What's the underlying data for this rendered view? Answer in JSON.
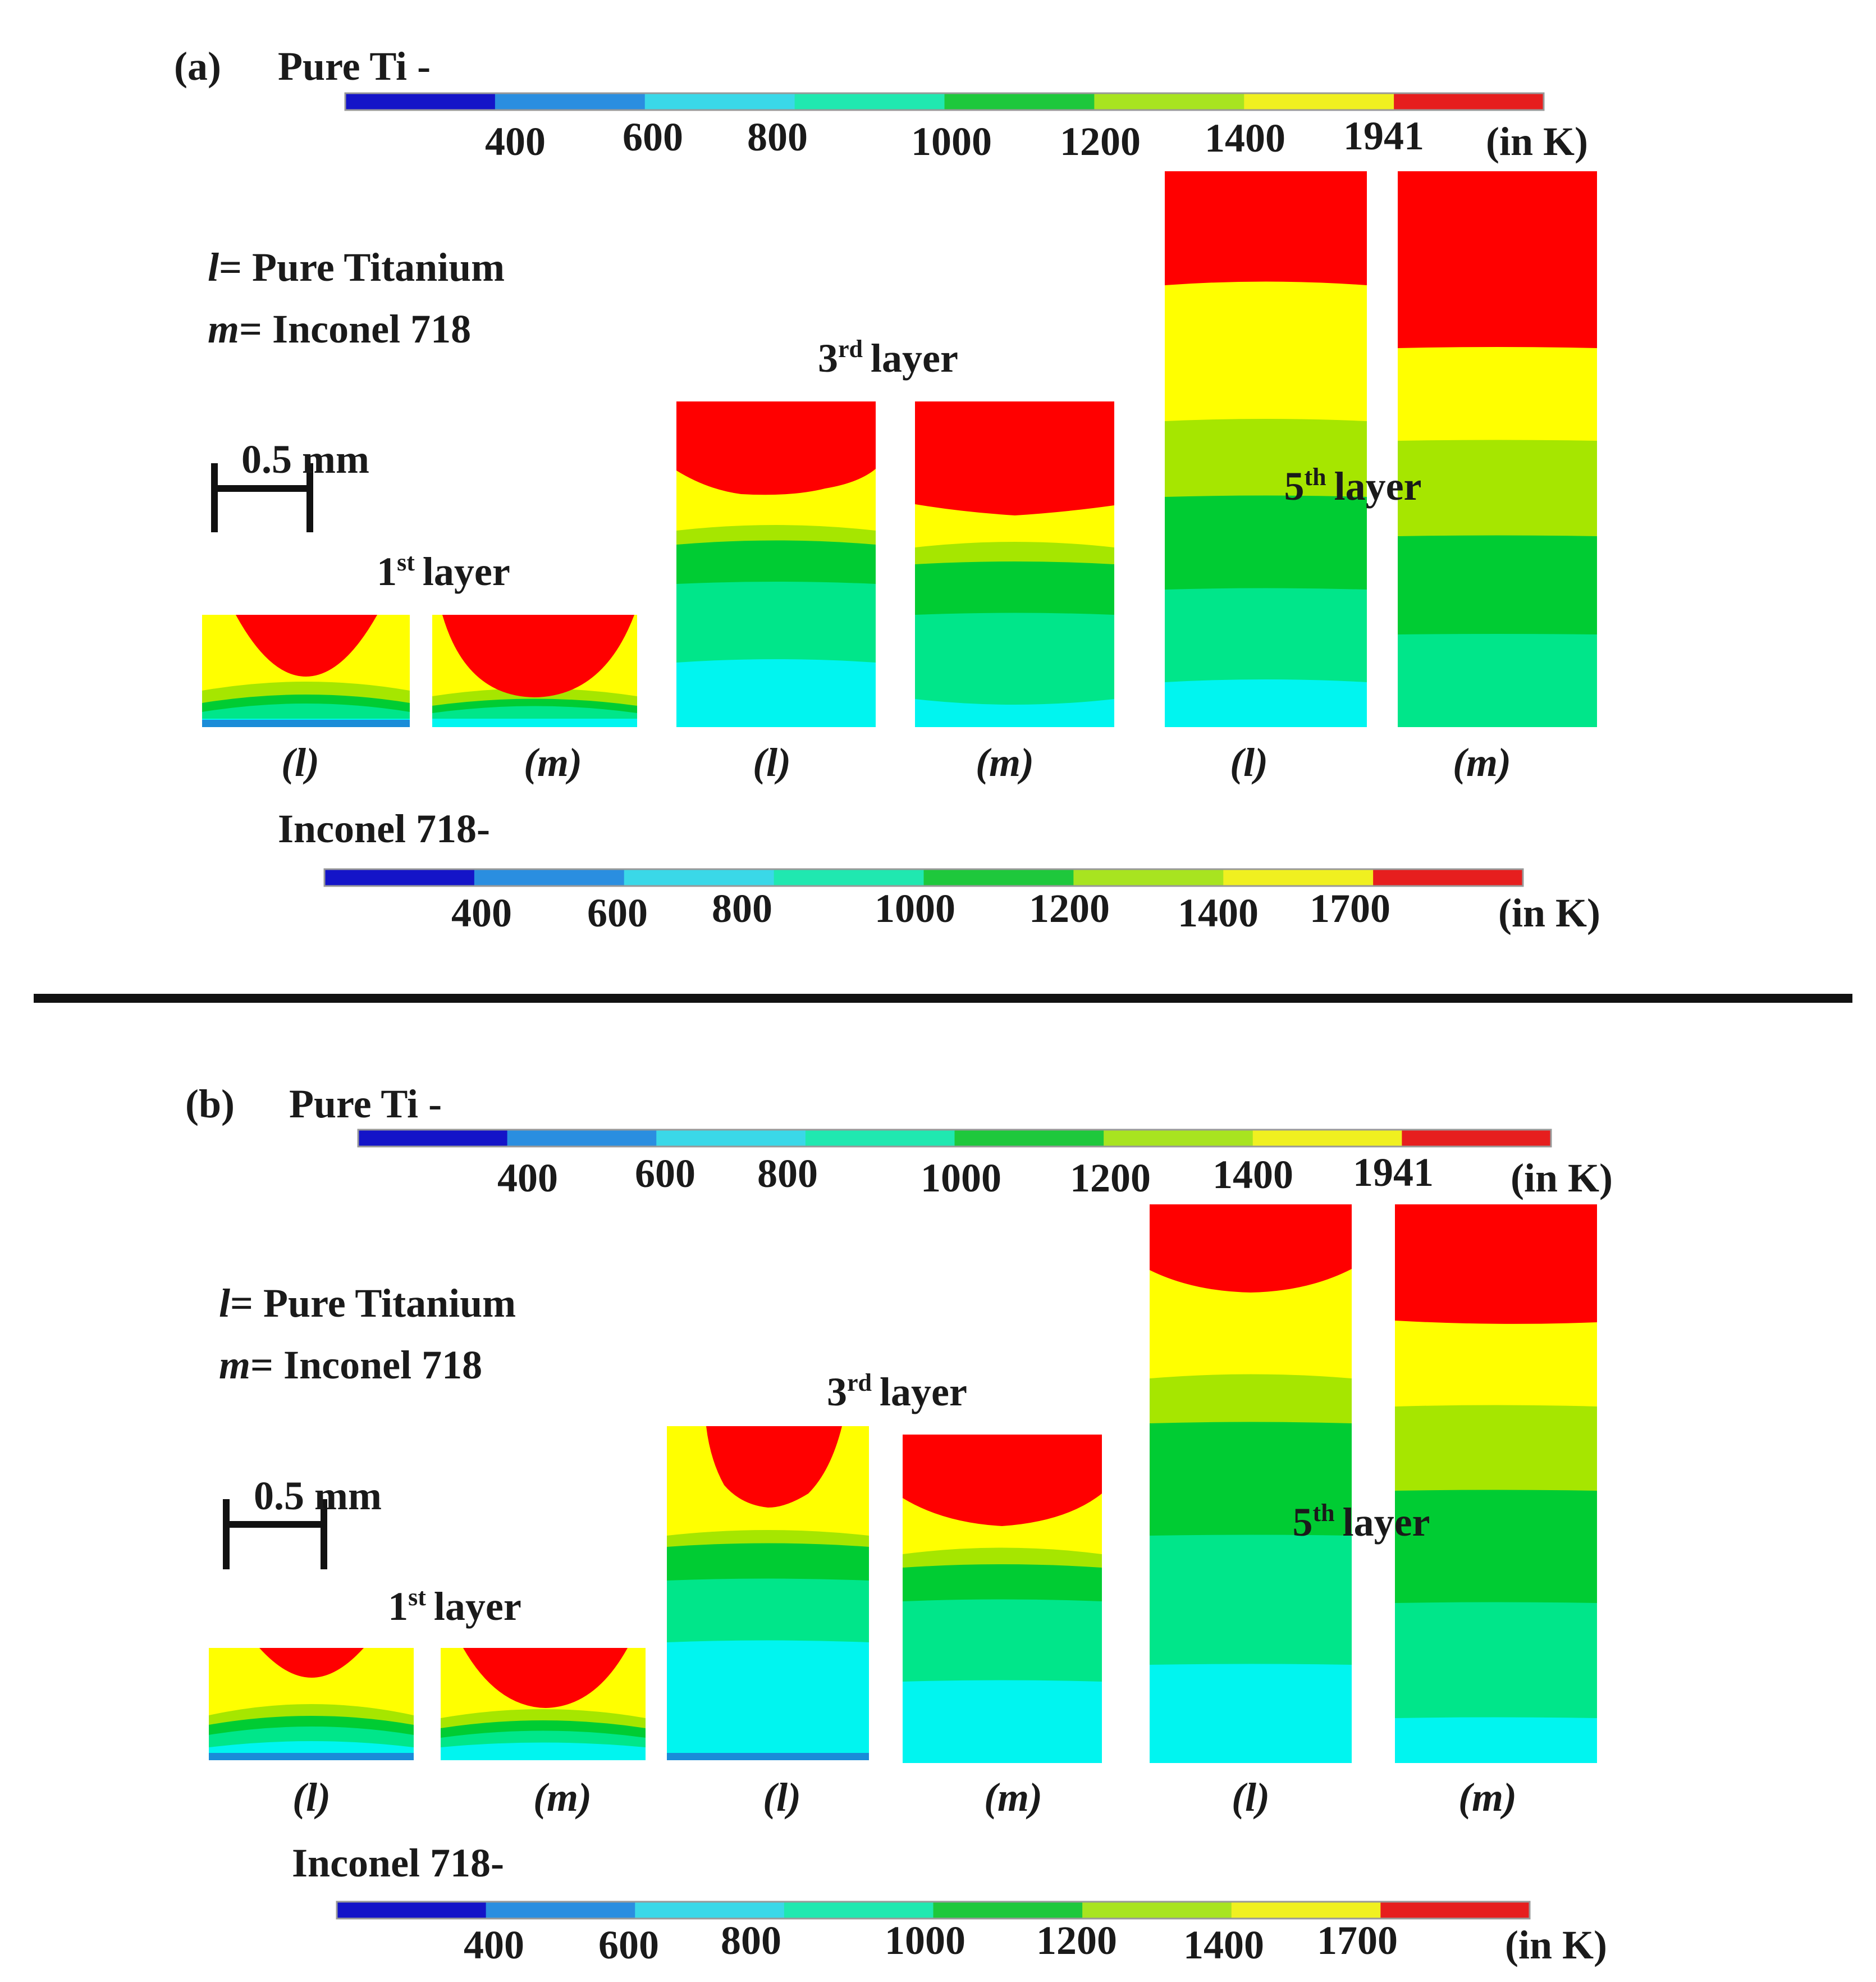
{
  "legend_colors": [
    "#1414c8",
    "#2a8ee0",
    "#3ad8e8",
    "#20e8b0",
    "#1ec83c",
    "#a8e420",
    "#f0f020",
    "#e61e1e"
  ],
  "contour_colors": {
    "red": "#ff0000",
    "yellow": "#ffff00",
    "yellowgreen": "#a6e600",
    "green": "#00cc33",
    "seagreen": "#00e68a",
    "cyan": "#00f5f0",
    "blue": "#1a8cd8"
  },
  "panels": [
    {
      "id": "a",
      "label": "(a)",
      "top_scale": {
        "title": "Pure Ti -",
        "ticks": [
          "400",
          "600",
          "800",
          "1000",
          "1200",
          "1400",
          "1941"
        ],
        "unit": "(in K)"
      },
      "bottom_scale": {
        "title": "Inconel 718-",
        "ticks": [
          "400",
          "600",
          "800",
          "1000",
          "1200",
          "1400",
          "1700"
        ],
        "unit": "(in K)"
      },
      "key": {
        "l_symbol": "l",
        "l_text": "= Pure Titanium",
        "m_symbol": "m",
        "m_text": "= Inconel 718"
      },
      "scale_bar": "0.5 mm",
      "layers": [
        {
          "num": "1",
          "sup": "st",
          "word": "layer"
        },
        {
          "num": "3",
          "sup": "rd",
          "word": "layer"
        },
        {
          "num": "5",
          "sup": "th",
          "word": "layer"
        }
      ],
      "sample_labels": [
        "(l)",
        "(m)",
        "(l)",
        "(m)",
        "(l)",
        "(m)"
      ]
    },
    {
      "id": "b",
      "label": "(b)",
      "top_scale": {
        "title": "Pure Ti -",
        "ticks": [
          "400",
          "600",
          "800",
          "1000",
          "1200",
          "1400",
          "1941"
        ],
        "unit": "(in K)"
      },
      "bottom_scale": {
        "title": "Inconel 718-",
        "ticks": [
          "400",
          "600",
          "800",
          "1000",
          "1200",
          "1400",
          "1700"
        ],
        "unit": "(in K)"
      },
      "key": {
        "l_symbol": "l",
        "l_text": "= Pure Titanium",
        "m_symbol": "m",
        "m_text": "= Inconel 718"
      },
      "scale_bar": "0.5 mm",
      "layers": [
        {
          "num": "1",
          "sup": "st",
          "word": "layer"
        },
        {
          "num": "3",
          "sup": "rd",
          "word": "layer"
        },
        {
          "num": "5",
          "sup": "th",
          "word": "layer"
        }
      ],
      "sample_labels": [
        "(l)",
        "(m)",
        "(l)",
        "(m)",
        "(l)",
        "(m)"
      ]
    }
  ]
}
